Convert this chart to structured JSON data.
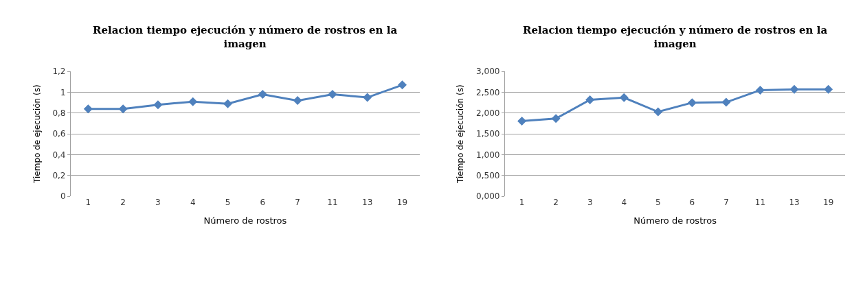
{
  "chart_data": [
    {
      "type": "line",
      "title": "Relacion tiempo ejecución y número de rostros en la imagen",
      "xlabel": "Número de rostros",
      "ylabel": "Tiempo de ejecución (s)",
      "categories": [
        "1",
        "2",
        "3",
        "4",
        "5",
        "6",
        "7",
        "11",
        "13",
        "19"
      ],
      "series": [
        {
          "color": "#4f81bd",
          "values": [
            0.84,
            0.84,
            0.88,
            0.91,
            0.89,
            0.98,
            0.92,
            0.98,
            0.95,
            1.07
          ]
        }
      ],
      "ylim": [
        0,
        1.2
      ],
      "yticks": [
        0,
        {
          "value": 0.2,
          "label": "0,2"
        },
        {
          "value": 0.4,
          "label": "0,4"
        },
        {
          "value": 0.6,
          "label": "0,6"
        },
        {
          "value": 0.8,
          "label": "0,8"
        },
        1,
        {
          "value": 1.2,
          "label": "1,2"
        }
      ],
      "grid": "y",
      "marker": "diamond",
      "line_style": "solid"
    },
    {
      "type": "line",
      "title": "Relacion tiempo ejecución y número de rostros en la imagen",
      "xlabel": "Número de rostros",
      "ylabel": "Tiempo de ejecución (s)",
      "categories": [
        "1",
        "2",
        "3",
        "4",
        "5",
        "6",
        "7",
        "11",
        "13",
        "19"
      ],
      "series": [
        {
          "color": "#4f81bd",
          "values": [
            1.81,
            1.87,
            2.32,
            2.37,
            2.03,
            2.25,
            2.26,
            2.55,
            2.57,
            2.57
          ]
        }
      ],
      "ylim": [
        0,
        3
      ],
      "yticks": [
        {
          "value": 0,
          "label": "0,000"
        },
        {
          "value": 0.5,
          "label": "0,500"
        },
        {
          "value": 1,
          "label": "1,000"
        },
        {
          "value": 1.5,
          "label": "1,500"
        },
        {
          "value": 2,
          "label": "2,000"
        },
        {
          "value": 2.5,
          "label": "2,500"
        },
        {
          "value": 3,
          "label": "3,000"
        }
      ],
      "grid": "y",
      "marker": "diamond",
      "line_style": "solid"
    }
  ]
}
